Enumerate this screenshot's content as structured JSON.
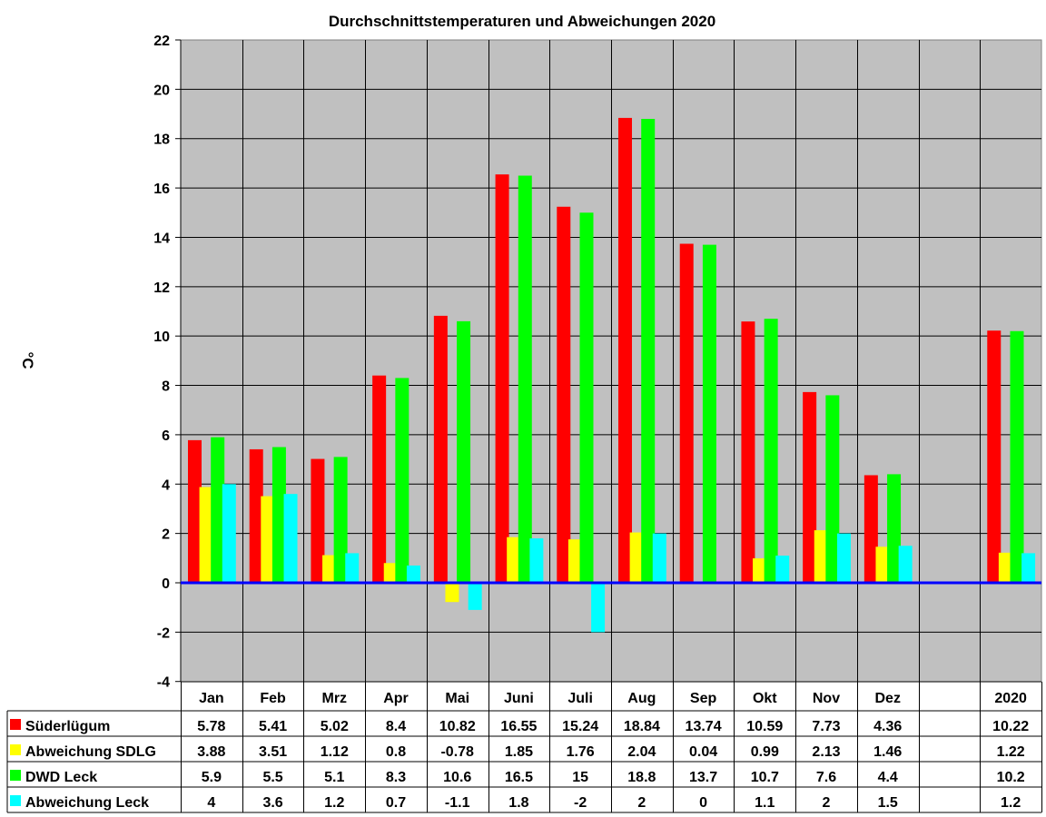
{
  "chart_data": {
    "type": "bar",
    "title": "Durchschnittstemperaturen und Abweichungen 2020",
    "xlabel": "",
    "ylabel": "°C",
    "ylim": [
      -4,
      22
    ],
    "yticks": [
      22,
      20,
      18,
      16,
      14,
      12,
      10,
      8,
      6,
      4,
      2,
      0,
      -2,
      -4
    ],
    "grid": true,
    "legend_position": "data-table-left",
    "categories": [
      "Jan",
      "Feb",
      "Mrz",
      "Apr",
      "Mai",
      "Juni",
      "Juli",
      "Aug",
      "Sep",
      "Okt",
      "Nov",
      "Dez",
      "",
      "2020"
    ],
    "series": [
      {
        "name": "Süderlügum",
        "color": "#FF0000",
        "values": [
          5.78,
          5.41,
          5.02,
          8.4,
          10.82,
          16.55,
          15.24,
          18.84,
          13.74,
          10.59,
          7.73,
          4.36,
          null,
          10.22
        ]
      },
      {
        "name": "Abweichung SDLG",
        "color": "#FFFF00",
        "values": [
          3.88,
          3.51,
          1.12,
          0.8,
          -0.78,
          1.85,
          1.76,
          2.04,
          0.04,
          0.99,
          2.13,
          1.46,
          null,
          1.22
        ]
      },
      {
        "name": "DWD Leck",
        "color": "#00FF00",
        "values": [
          5.9,
          5.5,
          5.1,
          8.3,
          10.6,
          16.5,
          15,
          18.8,
          13.7,
          10.7,
          7.6,
          4.4,
          null,
          10.2
        ]
      },
      {
        "name": "Abweichung Leck",
        "color": "#00FFFF",
        "values": [
          4,
          3.6,
          1.2,
          0.7,
          -1.1,
          1.8,
          -2,
          2,
          0,
          1.1,
          2,
          1.5,
          null,
          1.2
        ]
      }
    ],
    "table_text": [
      [
        "5.78",
        "5.41",
        "5.02",
        "8.4",
        "10.82",
        "16.55",
        "15.24",
        "18.84",
        "13.74",
        "10.59",
        "7.73",
        "4.36",
        "",
        "10.22"
      ],
      [
        "3.88",
        "3.51",
        "1.12",
        "0.8",
        "-0.78",
        "1.85",
        "1.76",
        "2.04",
        "0.04",
        "0.99",
        "2.13",
        "1.46",
        "",
        "1.22"
      ],
      [
        "5.9",
        "5.5",
        "5.1",
        "8.3",
        "10.6",
        "16.5",
        "15",
        "18.8",
        "13.7",
        "10.7",
        "7.6",
        "4.4",
        "",
        "10.2"
      ],
      [
        "4",
        "3.6",
        "1.2",
        "0.7",
        "-1.1",
        "1.8",
        "-2",
        "2",
        "0",
        "1.1",
        "2",
        "1.5",
        "",
        "1.2"
      ]
    ]
  },
  "colors": {
    "plot_bg": "#C0C0C0",
    "zero_line": "#0000FF",
    "grid": "#000000"
  }
}
